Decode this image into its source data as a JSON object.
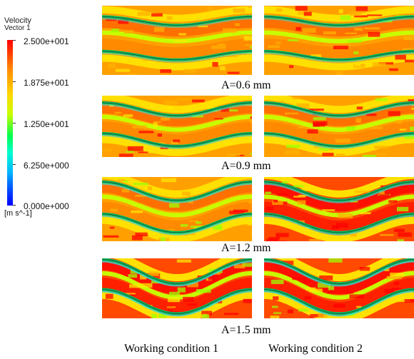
{
  "legend": {
    "title": "Velocity",
    "subtitle": "Vector 1",
    "ticks": [
      "2.500e+001",
      "1.875e+001",
      "1.250e+001",
      "6.250e+000",
      "0.000e+000"
    ],
    "unit": "[m s^-1]",
    "colors": [
      "#ff0000",
      "#ff8c00",
      "#ffd700",
      "#00ff50",
      "#00b4ff",
      "#0000ff"
    ]
  },
  "rows": [
    {
      "caption": "A=0.6 mm"
    },
    {
      "caption": "A=0.9 mm"
    },
    {
      "caption": "A=1.2 mm"
    },
    {
      "caption": "A=1.5 mm"
    }
  ],
  "columns": [
    "Working condition 1",
    "Working condition 2"
  ]
}
